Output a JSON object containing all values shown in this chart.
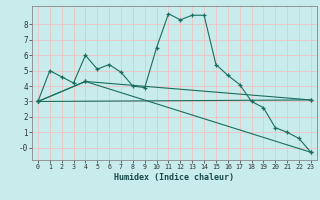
{
  "bg_color": "#c8ecec",
  "grid_color": "#e8c8c8",
  "line_color": "#1a6e5e",
  "marker_color": "#1a6e5e",
  "xlabel": "Humidex (Indice chaleur)",
  "xlim": [
    -0.5,
    23.5
  ],
  "ylim": [
    -0.8,
    9.2
  ],
  "xtick_labels": [
    "0",
    "1",
    "2",
    "3",
    "4",
    "5",
    "6",
    "7",
    "8",
    "9",
    "10",
    "11",
    "12",
    "13",
    "14",
    "15",
    "16",
    "17",
    "18",
    "19",
    "20",
    "21",
    "22",
    "23"
  ],
  "yticks": [
    0,
    1,
    2,
    3,
    4,
    5,
    6,
    7,
    8
  ],
  "ytick_labels": [
    "-0",
    "1",
    "2",
    "3",
    "4",
    "5",
    "6",
    "7",
    "8"
  ],
  "series": [
    {
      "x": [
        0,
        1,
        2,
        3,
        4,
        5,
        6,
        7,
        8,
        9,
        10,
        11,
        12,
        13,
        14,
        15,
        16,
        17,
        18,
        19,
        20,
        21,
        22,
        23
      ],
      "y": [
        3.0,
        5.0,
        4.6,
        4.2,
        6.0,
        5.1,
        5.4,
        4.9,
        4.0,
        3.9,
        6.5,
        8.7,
        8.3,
        8.6,
        8.6,
        5.4,
        4.7,
        4.1,
        3.0,
        2.6,
        1.3,
        1.0,
        0.6,
        -0.3
      ]
    },
    {
      "x": [
        0,
        4,
        23
      ],
      "y": [
        3.0,
        4.3,
        -0.3
      ]
    },
    {
      "x": [
        0,
        4,
        23
      ],
      "y": [
        3.0,
        4.3,
        3.1
      ]
    },
    {
      "x": [
        0,
        23
      ],
      "y": [
        3.0,
        3.1
      ]
    }
  ]
}
